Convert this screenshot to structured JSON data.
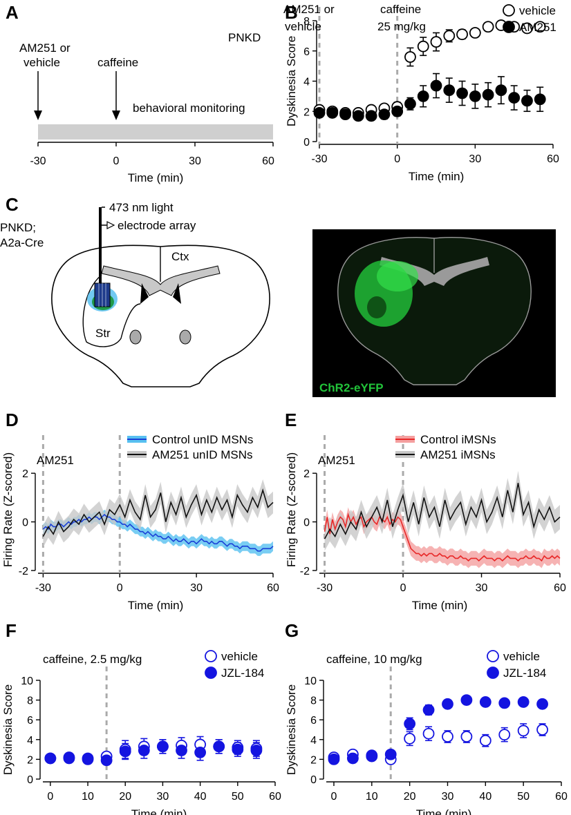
{
  "panels": {
    "A": {
      "label": "A",
      "annot1": [
        "AM251 or",
        "vehicle"
      ],
      "annot2": "caffeine",
      "annot3": "behavioral monitoring",
      "tag": "PNKD",
      "xlabel": "Time (min)",
      "xticks": [
        "-30",
        "0",
        "30",
        "60"
      ]
    },
    "B": {
      "label": "B"
    },
    "C": {
      "label": "C",
      "light": "473 nm light",
      "electrode": "electrode array",
      "mouse": [
        "PNKD;",
        "A2a-Cre"
      ],
      "ctx": "Ctx",
      "str": "Str",
      "histology": "ChR2-eYFP",
      "colors": {
        "green": "#22c43a",
        "blue": "#3ab8e6",
        "bg": "#000000"
      }
    },
    "D": {
      "label": "D"
    },
    "E": {
      "label": "E"
    },
    "F": {
      "label": "F"
    },
    "G": {
      "label": "G"
    }
  },
  "chart_data": [
    {
      "id": "B",
      "type": "scatter",
      "xlabel": "Time (min)",
      "ylabel": "Dyskinesia Score",
      "xlim": [
        -30,
        60
      ],
      "ylim": [
        0,
        8
      ],
      "xticks": [
        -30,
        0,
        30,
        60
      ],
      "yticks": [
        0,
        2,
        4,
        6,
        8
      ],
      "annotations": [
        [
          "AM251 or",
          "vehicle"
        ],
        [
          "caffeine",
          "25 mg/kg"
        ]
      ],
      "event_lines": [
        -30,
        0
      ],
      "legend": "top-right",
      "series": [
        {
          "name": "vehicle",
          "marker": "open",
          "color": "#000000",
          "x": [
            -30,
            -25,
            -20,
            -15,
            -10,
            -5,
            0,
            5,
            10,
            15,
            20,
            25,
            30,
            35,
            40,
            45,
            50,
            55
          ],
          "y": [
            2.1,
            2.0,
            1.9,
            1.9,
            2.1,
            2.2,
            2.3,
            5.6,
            6.3,
            6.6,
            7.0,
            7.1,
            7.2,
            7.6,
            7.7,
            7.6,
            7.5,
            7.6
          ],
          "err": [
            0.15,
            0.1,
            0.1,
            0.1,
            0.15,
            0.2,
            0.3,
            0.6,
            0.6,
            0.6,
            0.4,
            0.3,
            0.2,
            0.15,
            0.15,
            0.15,
            0.1,
            0.1
          ]
        },
        {
          "name": "AM251",
          "marker": "filled",
          "color": "#000000",
          "x": [
            -30,
            -25,
            -20,
            -15,
            -10,
            -5,
            0,
            5,
            10,
            15,
            20,
            25,
            30,
            35,
            40,
            45,
            50,
            55
          ],
          "y": [
            1.9,
            1.9,
            1.8,
            1.7,
            1.7,
            1.8,
            2.0,
            2.5,
            3.0,
            3.7,
            3.4,
            3.2,
            3.0,
            3.1,
            3.4,
            2.9,
            2.7,
            2.8
          ],
          "err": [
            0.2,
            0.2,
            0.2,
            0.2,
            0.2,
            0.3,
            0.3,
            0.4,
            0.7,
            0.8,
            0.8,
            0.8,
            0.8,
            0.8,
            0.9,
            0.8,
            0.7,
            0.8
          ]
        }
      ]
    },
    {
      "id": "D",
      "type": "line",
      "xlabel": "Time (min)",
      "ylabel": "Firing Rate (Z-scored)",
      "xlim": [
        -32,
        60
      ],
      "ylim": [
        -2,
        3
      ],
      "xticks": [
        -30,
        0,
        30,
        60
      ],
      "yticks": [
        -2,
        0,
        2
      ],
      "annotation": "AM251",
      "event_lines": [
        -30,
        0
      ],
      "legend": "top-right",
      "series": [
        {
          "name": "Control unID MSNs",
          "color": "#1a3fd6",
          "band": "#58c0f0",
          "x_start": -30,
          "x_step": 1,
          "y": [
            -0.3,
            -0.2,
            -0.3,
            -0.1,
            -0.2,
            -0.2,
            -0.1,
            -0.1,
            -0.2,
            -0.1,
            0.0,
            -0.1,
            0.0,
            0.0,
            0.1,
            0.0,
            0.1,
            0.1,
            0.2,
            0.1,
            0.2,
            0.2,
            0.1,
            0.2,
            0.3,
            0.2,
            0.2,
            0.1,
            0.1,
            0.0,
            0.0,
            -0.1,
            -0.1,
            -0.2,
            -0.1,
            -0.2,
            -0.3,
            -0.3,
            -0.4,
            -0.4,
            -0.5,
            -0.4,
            -0.5,
            -0.6,
            -0.5,
            -0.6,
            -0.6,
            -0.7,
            -0.7,
            -0.6,
            -0.7,
            -0.8,
            -0.7,
            -0.8,
            -0.8,
            -0.7,
            -0.8,
            -0.9,
            -0.8,
            -0.8,
            -0.9,
            -0.8,
            -0.7,
            -0.8,
            -0.8,
            -0.9,
            -0.8,
            -0.9,
            -0.9,
            -0.8,
            -0.8,
            -0.9,
            -1.0,
            -0.9,
            -0.9,
            -1.0,
            -1.0,
            -1.1,
            -1.0,
            -1.0,
            -1.0,
            -1.1,
            -1.1,
            -1.1,
            -1.2,
            -1.2,
            -1.1,
            -1.1,
            -1.1,
            -1.1,
            -1.0
          ],
          "band_width": 0.2
        },
        {
          "name": "AM251 unID MSNs",
          "color": "#111111",
          "band": "#c8c8c8",
          "x_start": -30,
          "x_step": 2,
          "y": [
            -0.6,
            -0.2,
            -0.5,
            0.0,
            -0.4,
            -0.2,
            0.1,
            -0.1,
            0.3,
            0.0,
            0.2,
            0.4,
            -0.1,
            0.5,
            0.3,
            0.7,
            0.2,
            0.9,
            0.4,
            0.1,
            1.1,
            0.2,
            0.5,
            1.2,
            0.0,
            0.8,
            0.3,
            1.0,
            0.2,
            0.7,
            1.1,
            0.3,
            0.9,
            0.4,
            1.0,
            0.5,
            0.9,
            0.2,
            1.1,
            0.7,
            0.4,
            1.0,
            0.6,
            1.3,
            0.6,
            0.8
          ],
          "band_width": 0.45
        }
      ]
    },
    {
      "id": "E",
      "type": "line",
      "xlabel": "Time (min)",
      "ylabel": "Firing Rate (Z-scored)",
      "xlim": [
        -32,
        60
      ],
      "ylim": [
        -2,
        3
      ],
      "xticks": [
        -30,
        0,
        30,
        60
      ],
      "yticks": [
        -2,
        0,
        2
      ],
      "annotation": "AM251",
      "event_lines": [
        -30,
        0
      ],
      "legend": "top-right",
      "series": [
        {
          "name": "Control iMSNs",
          "color": "#e82828",
          "band": "#f4a0a0",
          "x_start": -30,
          "x_step": 1,
          "y": [
            -0.4,
            0.2,
            -0.5,
            0.1,
            -0.3,
            0.0,
            0.2,
            0.1,
            -0.2,
            0.3,
            0.0,
            0.2,
            -0.1,
            0.1,
            0.2,
            -0.2,
            0.0,
            0.1,
            0.2,
            0.0,
            -0.1,
            0.2,
            0.1,
            0.0,
            0.2,
            -0.1,
            0.1,
            0.0,
            0.2,
            0.1,
            -0.2,
            -0.5,
            -0.8,
            -1.1,
            -1.2,
            -1.3,
            -1.3,
            -1.4,
            -1.3,
            -1.4,
            -1.3,
            -1.3,
            -1.4,
            -1.4,
            -1.3,
            -1.4,
            -1.4,
            -1.5,
            -1.4,
            -1.4,
            -1.5,
            -1.5,
            -1.4,
            -1.5,
            -1.5,
            -1.6,
            -1.5,
            -1.5,
            -1.5,
            -1.6,
            -1.5,
            -1.4,
            -1.5,
            -1.5,
            -1.5,
            -1.6,
            -1.5,
            -1.5,
            -1.6,
            -1.5,
            -1.4,
            -1.5,
            -1.5,
            -1.5,
            -1.6,
            -1.5,
            -1.5,
            -1.4,
            -1.5,
            -1.5,
            -1.4,
            -1.5,
            -1.5,
            -1.6,
            -1.4,
            -1.5,
            -1.5,
            -1.4,
            -1.5,
            -1.4,
            -1.5
          ],
          "band_width": 0.3
        },
        {
          "name": "AM251 iMSNs",
          "color": "#111111",
          "band": "#c8c8c8",
          "x_start": -30,
          "x_step": 2,
          "y": [
            -0.7,
            -0.3,
            -0.6,
            -0.1,
            -0.5,
            0.0,
            -0.3,
            0.4,
            -0.2,
            0.2,
            0.6,
            0.0,
            0.9,
            -0.2,
            0.5,
            1.1,
            0.0,
            0.8,
            -0.1,
            1.0,
            0.2,
            0.6,
            -0.2,
            0.9,
            0.1,
            0.5,
            0.8,
            -0.1,
            0.6,
            0.2,
            0.9,
            0.0,
            0.4,
            1.0,
            0.2,
            1.3,
            0.4,
            1.6,
            0.3,
            0.8,
            -0.2,
            0.5,
            0.1,
            0.6,
            0.0,
            0.2
          ],
          "band_width": 0.5
        }
      ]
    },
    {
      "id": "F",
      "type": "scatter",
      "xlabel": "Time (min)",
      "ylabel": "Dyskinesia Score",
      "xlim": [
        -2,
        60
      ],
      "ylim": [
        0,
        10
      ],
      "xticks": [
        0,
        10,
        20,
        30,
        40,
        50,
        60
      ],
      "yticks": [
        0,
        2,
        4,
        6,
        8,
        10
      ],
      "annotation": "caffeine, 2.5 mg/kg",
      "event_lines": [
        15
      ],
      "legend": "top-right",
      "series": [
        {
          "name": "vehicle",
          "marker": "open",
          "color": "#1414e0",
          "x": [
            0,
            5,
            10,
            15,
            20,
            25,
            30,
            35,
            40,
            45,
            50,
            55
          ],
          "y": [
            2.1,
            2.1,
            2.0,
            2.3,
            3.0,
            3.3,
            3.3,
            3.4,
            3.5,
            3.3,
            3.2,
            3.1
          ],
          "err": [
            0.2,
            0.2,
            0.2,
            0.3,
            0.9,
            0.8,
            0.7,
            0.8,
            0.8,
            0.7,
            0.7,
            0.8
          ]
        },
        {
          "name": "JZL-184",
          "marker": "filled",
          "color": "#1414e0",
          "x": [
            0,
            5,
            10,
            15,
            20,
            25,
            30,
            35,
            40,
            45,
            50,
            55
          ],
          "y": [
            2.1,
            2.2,
            2.1,
            1.9,
            2.8,
            2.9,
            3.3,
            2.9,
            2.7,
            3.3,
            3.0,
            2.9
          ],
          "err": [
            0.2,
            0.2,
            0.2,
            0.3,
            0.8,
            0.8,
            0.7,
            0.8,
            0.8,
            0.7,
            0.7,
            0.8
          ]
        }
      ]
    },
    {
      "id": "G",
      "type": "scatter",
      "xlabel": "Time (min)",
      "ylabel": "Dyskinesia Score",
      "xlim": [
        -2,
        60
      ],
      "ylim": [
        0,
        10
      ],
      "xticks": [
        0,
        10,
        20,
        30,
        40,
        50,
        60
      ],
      "yticks": [
        0,
        2,
        4,
        6,
        8,
        10
      ],
      "annotation": "caffeine, 10 mg/kg",
      "event_lines": [
        15
      ],
      "legend": "top-right",
      "series": [
        {
          "name": "vehicle",
          "marker": "open",
          "color": "#1414e0",
          "x": [
            0,
            5,
            10,
            15,
            20,
            25,
            30,
            35,
            40,
            45,
            50,
            55
          ],
          "y": [
            2.2,
            2.5,
            2.3,
            2.0,
            4.1,
            4.6,
            4.3,
            4.3,
            3.9,
            4.5,
            4.9,
            5.0
          ],
          "err": [
            0.2,
            0.3,
            0.2,
            0.3,
            0.7,
            0.7,
            0.6,
            0.6,
            0.6,
            0.7,
            0.7,
            0.6
          ]
        },
        {
          "name": "JZL-184",
          "marker": "filled",
          "color": "#1414e0",
          "x": [
            0,
            5,
            10,
            15,
            20,
            25,
            30,
            35,
            40,
            45,
            50,
            55
          ],
          "y": [
            2.0,
            2.1,
            2.4,
            2.5,
            5.6,
            7.0,
            7.6,
            8.0,
            7.8,
            7.7,
            7.8,
            7.6
          ],
          "err": [
            0.2,
            0.2,
            0.2,
            0.3,
            0.6,
            0.5,
            0.3,
            0.2,
            0.2,
            0.2,
            0.2,
            0.2
          ]
        }
      ]
    }
  ]
}
